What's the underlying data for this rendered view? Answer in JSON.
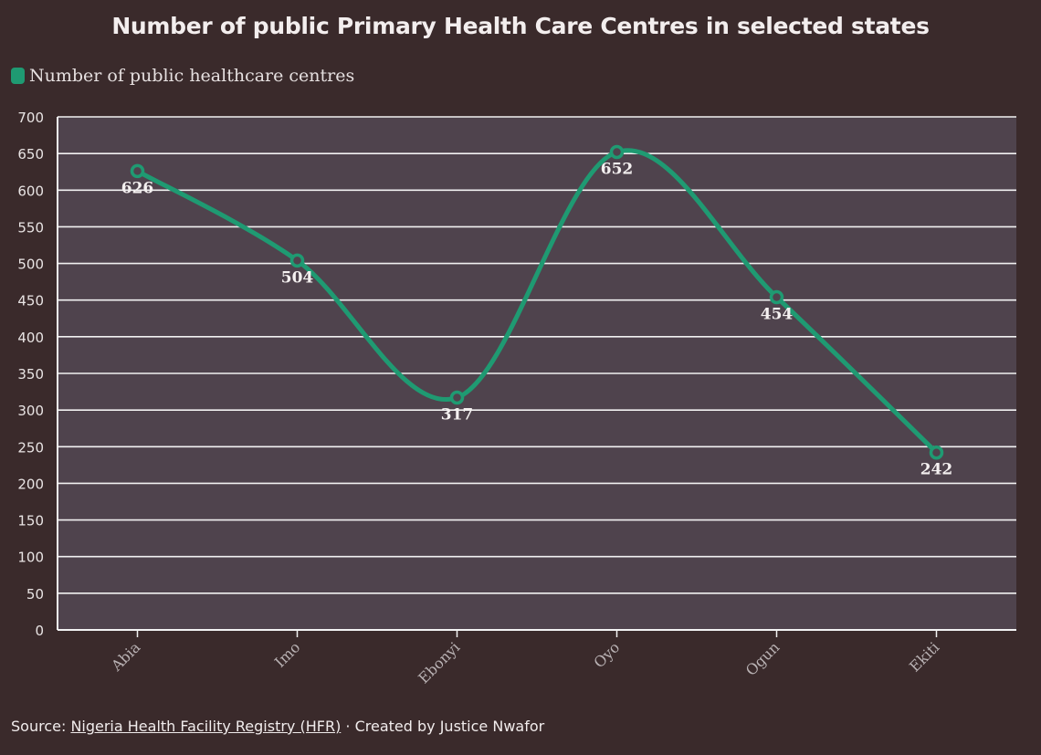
{
  "title": "Number of public Primary Health Care Centres in selected states",
  "legend": {
    "label": "Number of public healthcare centres"
  },
  "footer": {
    "source_prefix": "Source:",
    "source_link": "Nigeria Health Facility Registry (HFR)",
    "separator": "·",
    "credit": "Created by Justice Nwafor"
  },
  "colors": {
    "background": "#3a2a2b",
    "plot_background": "#4f434d",
    "line": "#1f9a72",
    "grid": "#f2f2f2",
    "text": "#e9e4e4"
  },
  "chart_data": {
    "type": "line",
    "categories": [
      "Abia",
      "Imo",
      "Ebonyi",
      "Oyo",
      "Ogun",
      "Ekiti"
    ],
    "series": [
      {
        "name": "Number of public healthcare centres",
        "values": [
          626,
          504,
          317,
          652,
          454,
          242
        ]
      }
    ],
    "data_labels": [
      "626",
      "504",
      "317",
      "652",
      "454",
      "242"
    ],
    "ylim": [
      0,
      700
    ],
    "yticks": [
      0,
      50,
      100,
      150,
      200,
      250,
      300,
      350,
      400,
      450,
      500,
      550,
      600,
      650,
      700
    ],
    "ytick_labels": [
      "0",
      "50",
      "100",
      "150",
      "200",
      "250",
      "300",
      "350",
      "400",
      "450",
      "500",
      "550",
      "600",
      "650",
      "700"
    ],
    "grid": true,
    "smooth": true,
    "legend_position": "top-left"
  }
}
